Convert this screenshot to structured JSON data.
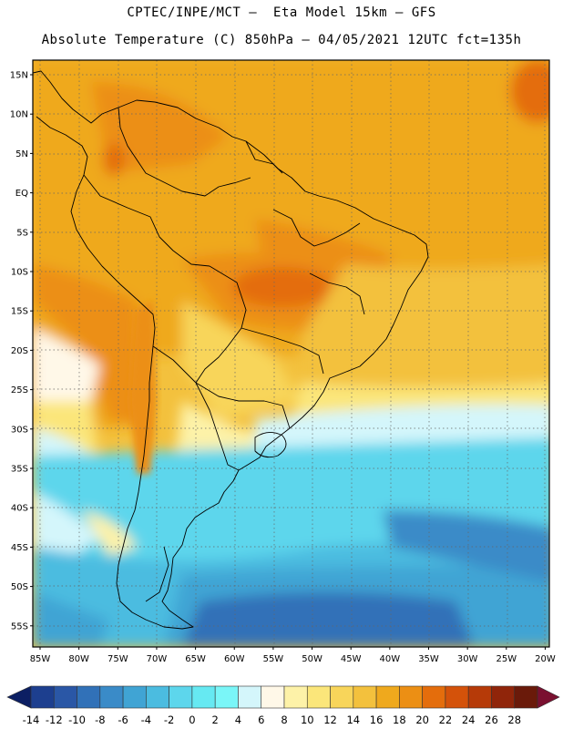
{
  "header": {
    "line1": "CPTEC/INPE/MCT –  Eta Model 15km – GFS",
    "line2": "Absolute Temperature (C) 850hPa – 04/05/2021 12UTC fct=135h"
  },
  "axes": {
    "lat_labels": [
      "15N",
      "10N",
      "5N",
      "EQ",
      "5S",
      "10S",
      "15S",
      "20S",
      "25S",
      "30S",
      "35S",
      "40S",
      "45S",
      "50S",
      "55S"
    ],
    "lon_labels": [
      "85W",
      "80W",
      "75W",
      "70W",
      "65W",
      "60W",
      "55W",
      "50W",
      "45W",
      "40W",
      "35W",
      "30W",
      "25W",
      "20W"
    ]
  },
  "colorbar": {
    "labels": [
      "-14",
      "-12",
      "-10",
      "-8",
      "-6",
      "-4",
      "-2",
      "0",
      "2",
      "4",
      "6",
      "8",
      "10",
      "12",
      "14",
      "16",
      "18",
      "20",
      "22",
      "24",
      "26",
      "28"
    ],
    "colors": [
      "#0c1f63",
      "#1d3f8f",
      "#2a57a6",
      "#3171b8",
      "#3a8bc8",
      "#40a4d4",
      "#4bbce0",
      "#5dd6ec",
      "#66e9f2",
      "#7af6f8",
      "#d4f6fb",
      "#fff8e8",
      "#fdf2a8",
      "#fbe67a",
      "#f8d55a",
      "#f3c13d",
      "#efa91d",
      "#ec8f14",
      "#e46d0c",
      "#d4520a",
      "#b63a08",
      "#90250a",
      "#6a1a0a",
      "#7a1030"
    ]
  },
  "map_data": {
    "region": "South America",
    "field": "Absolute Temperature (C) 850hPa",
    "lat_range": [
      "15N",
      "57S"
    ],
    "lon_range": [
      "86W",
      "19W"
    ],
    "grid": true
  }
}
